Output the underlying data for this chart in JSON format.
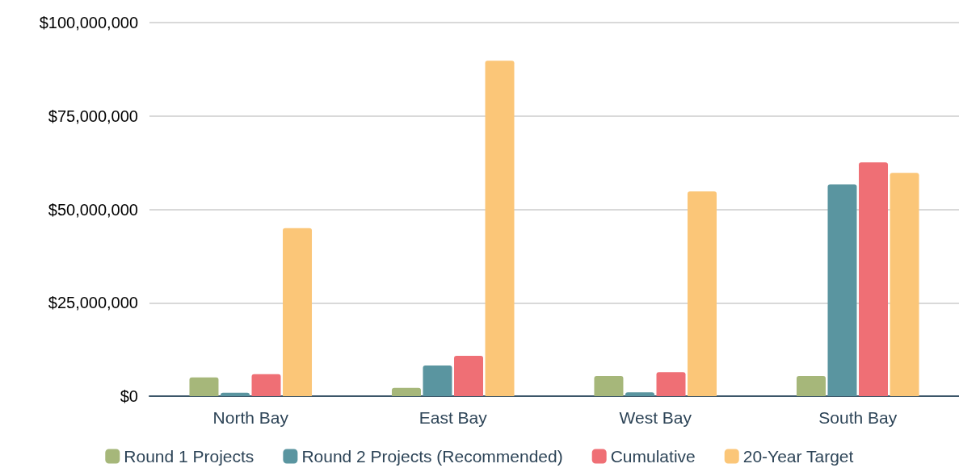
{
  "chart_data": {
    "type": "bar",
    "categories": [
      "North Bay",
      "East Bay",
      "West Bay",
      "South Bay"
    ],
    "series": [
      {
        "name": "Round 1 Projects",
        "color": "#a6b77a",
        "values": [
          5000000,
          2200000,
          5400000,
          5400000
        ]
      },
      {
        "name": "Round 2 Projects (Recommended)",
        "color": "#5a95a0",
        "values": [
          900000,
          8200000,
          1000000,
          56700000
        ]
      },
      {
        "name": "Cumulative",
        "color": "#ef6f75",
        "values": [
          5900000,
          10800000,
          6400000,
          62600000
        ]
      },
      {
        "name": "20-Year Target",
        "color": "#fbc678",
        "values": [
          45000000,
          89800000,
          54800000,
          59800000
        ]
      }
    ],
    "ylim": [
      0,
      100000000
    ],
    "yticks": [
      {
        "value": 0,
        "label": "$0"
      },
      {
        "value": 25000000,
        "label": "$25,000,000"
      },
      {
        "value": 50000000,
        "label": "$50,000,000"
      },
      {
        "value": 75000000,
        "label": "$75,000,000"
      },
      {
        "value": 100000000,
        "label": "$100,000,000"
      }
    ],
    "grid": "y",
    "legend": "bottom"
  }
}
